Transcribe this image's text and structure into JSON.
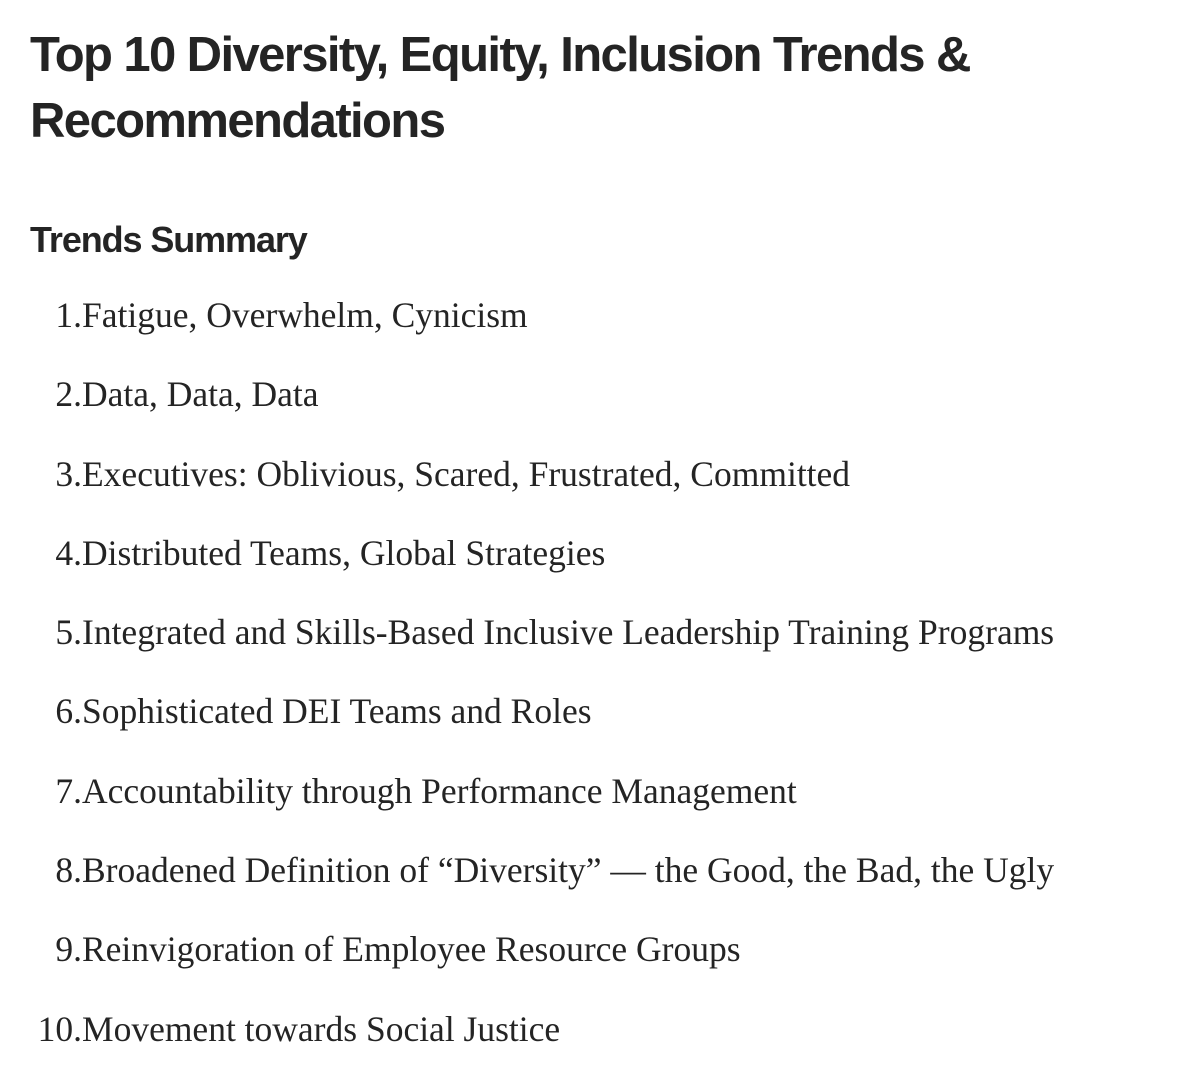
{
  "article": {
    "title": "Top 10 Diversity, Equity, Inclusion Trends & Recommendations",
    "section_heading": "Trends Summary",
    "trends": [
      {
        "number": "1.",
        "text": "Fatigue, Overwhelm, Cynicism"
      },
      {
        "number": "2.",
        "text": "Data, Data, Data"
      },
      {
        "number": "3.",
        "text": "Executives: Oblivious, Scared, Frustrated, Committed"
      },
      {
        "number": "4.",
        "text": "Distributed Teams, Global Strategies"
      },
      {
        "number": "5.",
        "text": "Integrated and Skills-Based Inclusive Leadership Training Programs"
      },
      {
        "number": "6.",
        "text": "Sophisticated DEI Teams and Roles"
      },
      {
        "number": "7.",
        "text": "Accountability through Performance Management"
      },
      {
        "number": "8.",
        "text": "Broadened Definition of “Diversity” — the Good, the Bad, the Ugly"
      },
      {
        "number": "9.",
        "text": "Reinvigoration of Employee Resource Groups"
      },
      {
        "number": "10.",
        "text": "Movement towards Social Justice"
      }
    ]
  }
}
